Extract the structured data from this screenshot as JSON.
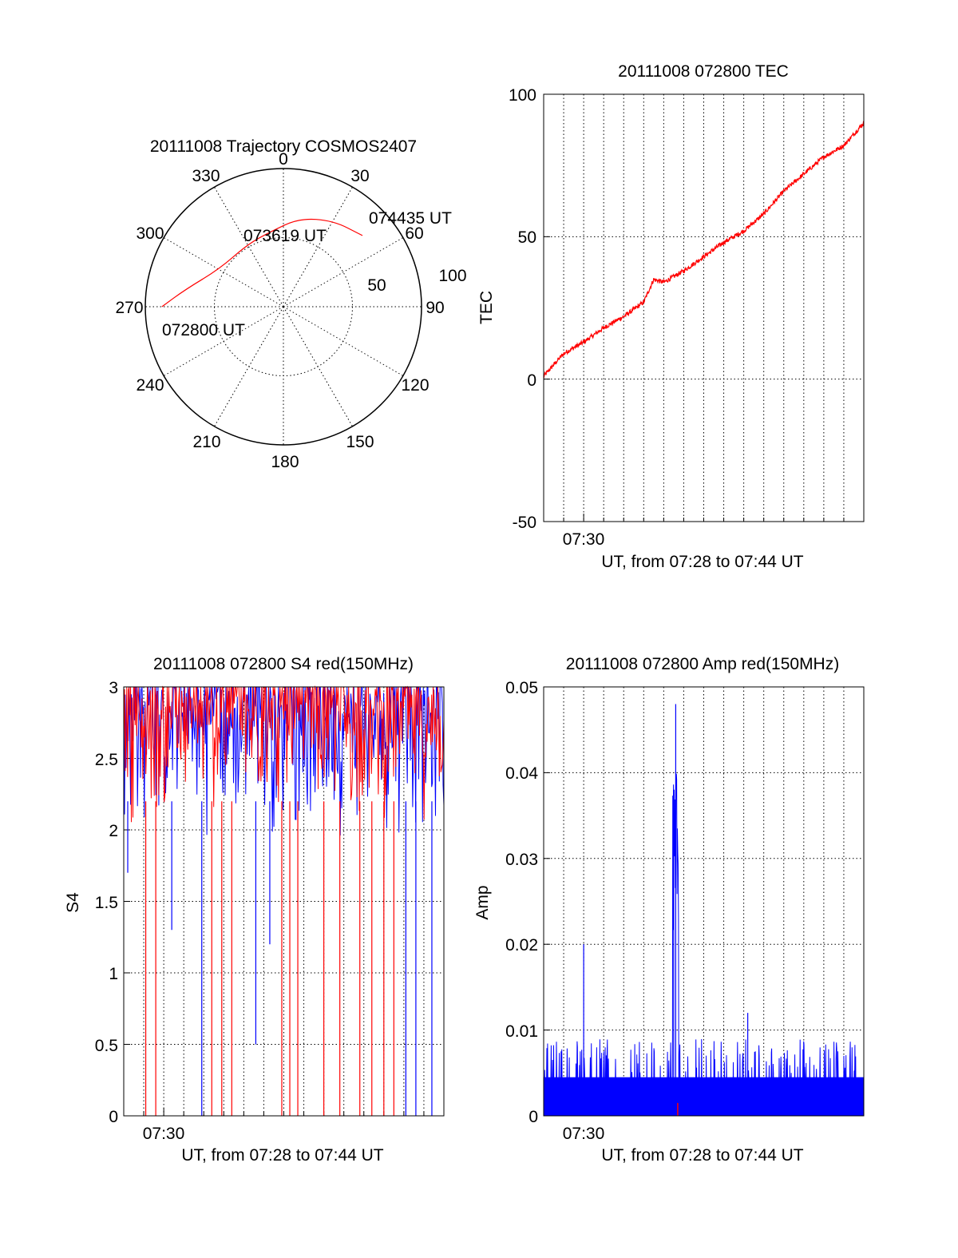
{
  "charts": [
    {
      "type": "polar",
      "title": "20111008 Trajectory COSMOS2407",
      "angle_labels": [
        "0",
        "30",
        "60",
        "90",
        "120",
        "150",
        "180",
        "210",
        "240",
        "270",
        "300",
        "330"
      ],
      "radial_labels": [
        "50",
        "100"
      ],
      "trajectory_labels": [
        "074435 UT",
        "073619 UT",
        "072800 UT"
      ]
    },
    {
      "type": "line",
      "title": "20111008 072800 TEC",
      "xlabel": "UT, from 07:28 to 07:44 UT",
      "ylabel": "TEC",
      "xtick_label": "07:30",
      "yticks": [
        "100",
        "50",
        "0",
        "-50"
      ]
    },
    {
      "type": "line",
      "title": "20111008 072800 S4 red(150MHz)",
      "xlabel": "UT, from 07:28 to 07:44 UT",
      "ylabel": "S4",
      "xtick_label": "07:30",
      "yticks": [
        "3",
        "2.5",
        "2",
        "1.5",
        "1",
        "0.5",
        "0"
      ]
    },
    {
      "type": "line",
      "title": "20111008 072800 Amp red(150MHz)",
      "xlabel": "UT, from 07:28 to 07:44 UT",
      "ylabel": "Amp",
      "xtick_label": "07:30",
      "yticks": [
        "0.05",
        "0.04",
        "0.03",
        "0.02",
        "0.01",
        "0"
      ]
    }
  ],
  "colors": {
    "red": "#ff0000",
    "blue": "#0000ff",
    "axis": "#000000"
  },
  "chart_data": [
    {
      "type": "polar",
      "title": "20111008 Trajectory COSMOS2407",
      "angle_ticks_deg": [
        0,
        30,
        60,
        90,
        120,
        150,
        180,
        210,
        240,
        270,
        300,
        330
      ],
      "radial_ticks": [
        50,
        100
      ],
      "r_max": 100,
      "trajectory": {
        "color": "red",
        "points": [
          {
            "az": 270,
            "r": 88
          },
          {
            "az": 280,
            "r": 72
          },
          {
            "az": 300,
            "r": 54
          },
          {
            "az": 330,
            "r": 52
          },
          {
            "az": 350,
            "r": 55
          },
          {
            "az": 10,
            "r": 65
          },
          {
            "az": 30,
            "r": 72
          },
          {
            "az": 48,
            "r": 77
          }
        ],
        "labels": [
          {
            "text": "072800 UT",
            "az": 270,
            "r": 88
          },
          {
            "text": "073619 UT",
            "az": 345,
            "r": 53
          },
          {
            "text": "074435 UT",
            "az": 48,
            "r": 77
          }
        ]
      }
    },
    {
      "type": "line",
      "title": "20111008 072800 TEC",
      "xlabel": "UT, from 07:28 to 07:44 UT",
      "ylabel": "TEC",
      "xlim_min": [
        0,
        16
      ],
      "ylim": [
        -50,
        100
      ],
      "yticks": [
        100,
        50,
        0,
        -50
      ],
      "x_major_tick": {
        "t": 2,
        "label": "07:30"
      },
      "grid": true,
      "series": [
        {
          "color": "red",
          "x": [
            0,
            1,
            2,
            3,
            4,
            5,
            5.5,
            6,
            7,
            8,
            9,
            10,
            11,
            12,
            13,
            14,
            15,
            16
          ],
          "y": [
            1,
            9,
            13,
            18,
            22,
            27,
            35,
            34,
            38,
            43,
            48,
            52,
            58,
            66,
            72,
            78,
            82,
            90
          ]
        }
      ]
    },
    {
      "type": "line",
      "title": "20111008 072800 S4 red(150MHz)",
      "xlabel": "UT, from 07:28 to 07:44 UT",
      "ylabel": "S4",
      "xlim_min": [
        0,
        16
      ],
      "ylim": [
        0,
        3
      ],
      "yticks": [
        3,
        2.5,
        2,
        1.5,
        1,
        0.5,
        0
      ],
      "x_major_tick": {
        "t": 2,
        "label": "07:30"
      },
      "grid": true,
      "series": [
        {
          "color": "blue",
          "description_values": "dense noisy values mostly between 1.9 and 3, with dips to 0",
          "baseline_range": [
            1.9,
            3.0
          ]
        },
        {
          "color": "red",
          "baseline_range": [
            2.0,
            3.0
          ]
        }
      ],
      "dips": [
        {
          "t": 0.2,
          "y": 1.7,
          "color": "blue"
        },
        {
          "t": 1.1,
          "y": 0,
          "color": "red"
        },
        {
          "t": 1.6,
          "y": 0,
          "color": "red"
        },
        {
          "t": 2.4,
          "y": 1.3,
          "color": "blue"
        },
        {
          "t": 3.9,
          "y": 0,
          "color": "blue"
        },
        {
          "t": 4.4,
          "y": 0,
          "color": "red"
        },
        {
          "t": 4.9,
          "y": 0,
          "color": "red"
        },
        {
          "t": 5.4,
          "y": 0,
          "color": "red"
        },
        {
          "t": 6.6,
          "y": 0.5,
          "color": "blue"
        },
        {
          "t": 7.3,
          "y": 1.2,
          "color": "blue"
        },
        {
          "t": 7.9,
          "y": 0,
          "color": "red"
        },
        {
          "t": 8.3,
          "y": 0,
          "color": "red"
        },
        {
          "t": 8.7,
          "y": 0,
          "color": "red"
        },
        {
          "t": 10.0,
          "y": 0,
          "color": "red"
        },
        {
          "t": 10.8,
          "y": 0,
          "color": "red"
        },
        {
          "t": 11.8,
          "y": 0,
          "color": "red"
        },
        {
          "t": 12.4,
          "y": 0,
          "color": "red"
        },
        {
          "t": 13.0,
          "y": 0,
          "color": "red"
        },
        {
          "t": 13.5,
          "y": 0,
          "color": "red"
        },
        {
          "t": 14.1,
          "y": 0,
          "color": "blue"
        },
        {
          "t": 14.6,
          "y": 0,
          "color": "blue"
        },
        {
          "t": 15.4,
          "y": 0,
          "color": "blue"
        }
      ]
    },
    {
      "type": "line",
      "title": "20111008 072800 Amp red(150MHz)",
      "xlabel": "UT, from 07:28 to 07:44 UT",
      "ylabel": "Amp",
      "xlim_min": [
        0,
        16
      ],
      "ylim": [
        0,
        0.05
      ],
      "yticks": [
        0.05,
        0.04,
        0.03,
        0.02,
        0.01,
        0
      ],
      "x_major_tick": {
        "t": 2,
        "label": "07:30"
      },
      "grid": true,
      "series": [
        {
          "color": "blue",
          "baseline_range": [
            0.0,
            0.007
          ]
        },
        {
          "color": "red",
          "baseline_range": [
            0.0,
            0.0005
          ]
        }
      ],
      "peaks": [
        {
          "t": 2.0,
          "y": 0.02,
          "color": "blue"
        },
        {
          "t": 6.6,
          "y": 0.048,
          "color": "blue"
        },
        {
          "t": 6.5,
          "y": 0.038,
          "color": "blue"
        },
        {
          "t": 6.7,
          "y": 0.0015,
          "color": "red"
        },
        {
          "t": 10.2,
          "y": 0.012,
          "color": "blue"
        }
      ]
    }
  ]
}
